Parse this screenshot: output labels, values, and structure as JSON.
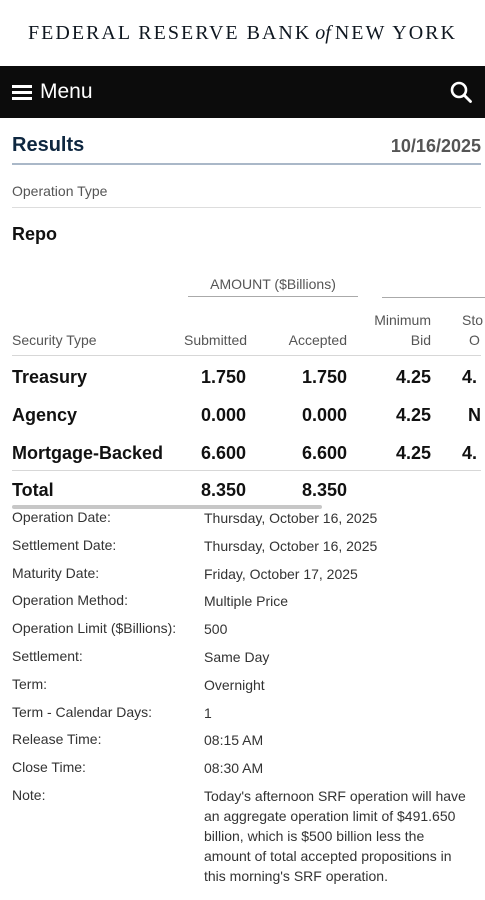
{
  "brand": {
    "part1": "FEDERAL RESERVE BANK",
    "of": "of",
    "part2": "NEW YORK"
  },
  "nav": {
    "menu_label": "Menu",
    "search_icon": "search-icon"
  },
  "results": {
    "title": "Results",
    "date": "10/16/2025"
  },
  "operation": {
    "type_label": "Operation Type",
    "type_value": "Repo"
  },
  "table": {
    "amount_header": "AMOUNT ($Billions)",
    "headers": {
      "security": "Security Type",
      "submitted": "Submitted",
      "accepted": "Accepted",
      "min_bid_1": "Minimum",
      "min_bid_2": "Bid",
      "cut1": "Sto",
      "cut2": "O"
    },
    "rows": [
      {
        "security": "Treasury",
        "submitted": "1.750",
        "accepted": "1.750",
        "min_bid": "4.25",
        "cut": "4."
      },
      {
        "security": "Agency",
        "submitted": "0.000",
        "accepted": "0.000",
        "min_bid": "4.25",
        "cut": "N"
      },
      {
        "security": "Mortgage-Backed",
        "submitted": "6.600",
        "accepted": "6.600",
        "min_bid": "4.25",
        "cut": "4."
      }
    ],
    "total": {
      "label": "Total",
      "submitted": "8.350",
      "accepted": "8.350"
    }
  },
  "details": [
    {
      "label": "Operation Date:",
      "value": "Thursday, October 16, 2025"
    },
    {
      "label": "Settlement Date:",
      "value": "Thursday, October 16, 2025"
    },
    {
      "label": "Maturity Date:",
      "value": "Friday, October 17, 2025"
    },
    {
      "label": "Operation Method:",
      "value": "Multiple Price"
    },
    {
      "label": "Operation Limit ($Billions):",
      "value": "500"
    },
    {
      "label": "Settlement:",
      "value": "Same Day"
    },
    {
      "label": "Term:",
      "value": "Overnight"
    },
    {
      "label": "Term - Calendar Days:",
      "value": "1"
    },
    {
      "label": "Release Time:",
      "value": "08:15 AM"
    },
    {
      "label": "Close Time:",
      "value": "08:30 AM"
    },
    {
      "label": "Note:",
      "value": "Today's afternoon SRF operation will have an aggregate operation limit of $491.650 billion, which is $500 billion less the amount of total accepted propositions in this morning's SRF operation."
    }
  ]
}
